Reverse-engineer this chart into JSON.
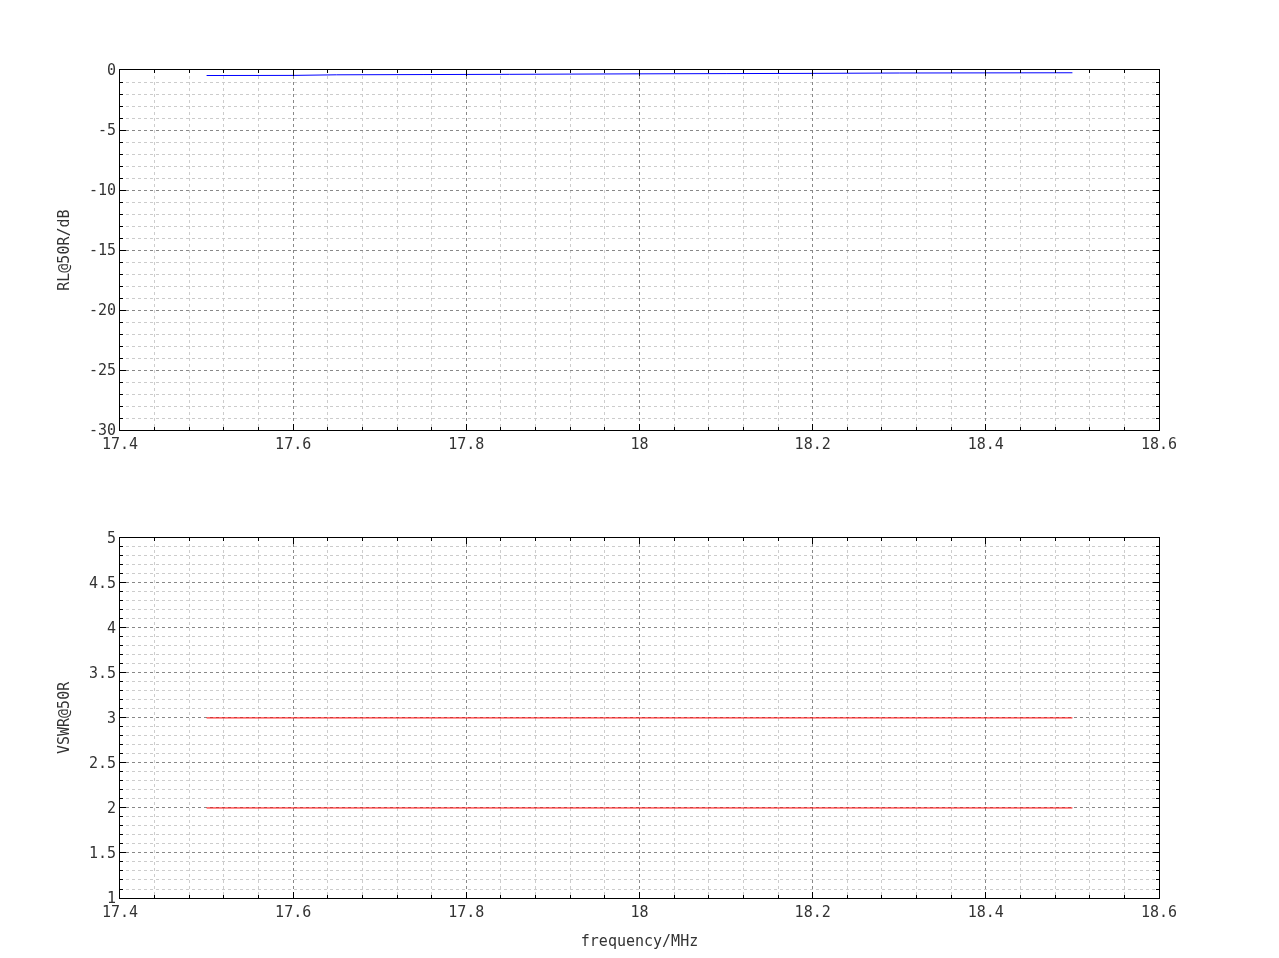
{
  "chart_data": [
    {
      "type": "line",
      "ylabel": "RL@50R/dB",
      "xlim": [
        17.4,
        18.6
      ],
      "xticks": [
        17.4,
        17.6,
        17.8,
        18,
        18.2,
        18.4,
        18.6
      ],
      "ylim": [
        -30,
        0
      ],
      "yticks": [
        -30,
        -25,
        -20,
        -15,
        -10,
        -5,
        0
      ],
      "grid": true,
      "series": [
        {
          "color": "#0000ff",
          "x": [
            17.5,
            17.6,
            17.65,
            17.75,
            17.85,
            18.0,
            18.1,
            18.2,
            18.3,
            18.4,
            18.5
          ],
          "values": [
            -0.46,
            -0.45,
            -0.4,
            -0.38,
            -0.36,
            -0.32,
            -0.3,
            -0.28,
            -0.25,
            -0.24,
            -0.23
          ]
        }
      ]
    },
    {
      "type": "line",
      "xlabel": "frequency/MHz",
      "ylabel": "VSWR@50R",
      "xlim": [
        17.4,
        18.6
      ],
      "xticks": [
        17.4,
        17.6,
        17.8,
        18,
        18.2,
        18.4,
        18.6
      ],
      "ylim": [
        1,
        5
      ],
      "yticks": [
        1,
        1.5,
        2,
        2.5,
        3,
        3.5,
        4,
        4.5,
        5
      ],
      "grid": true,
      "series": [
        {
          "color": "#ff0000",
          "x": [
            17.5,
            18.5
          ],
          "values": [
            2,
            2
          ]
        },
        {
          "color": "#ff0000",
          "x": [
            17.5,
            18.5
          ],
          "values": [
            3,
            3
          ]
        }
      ]
    }
  ]
}
